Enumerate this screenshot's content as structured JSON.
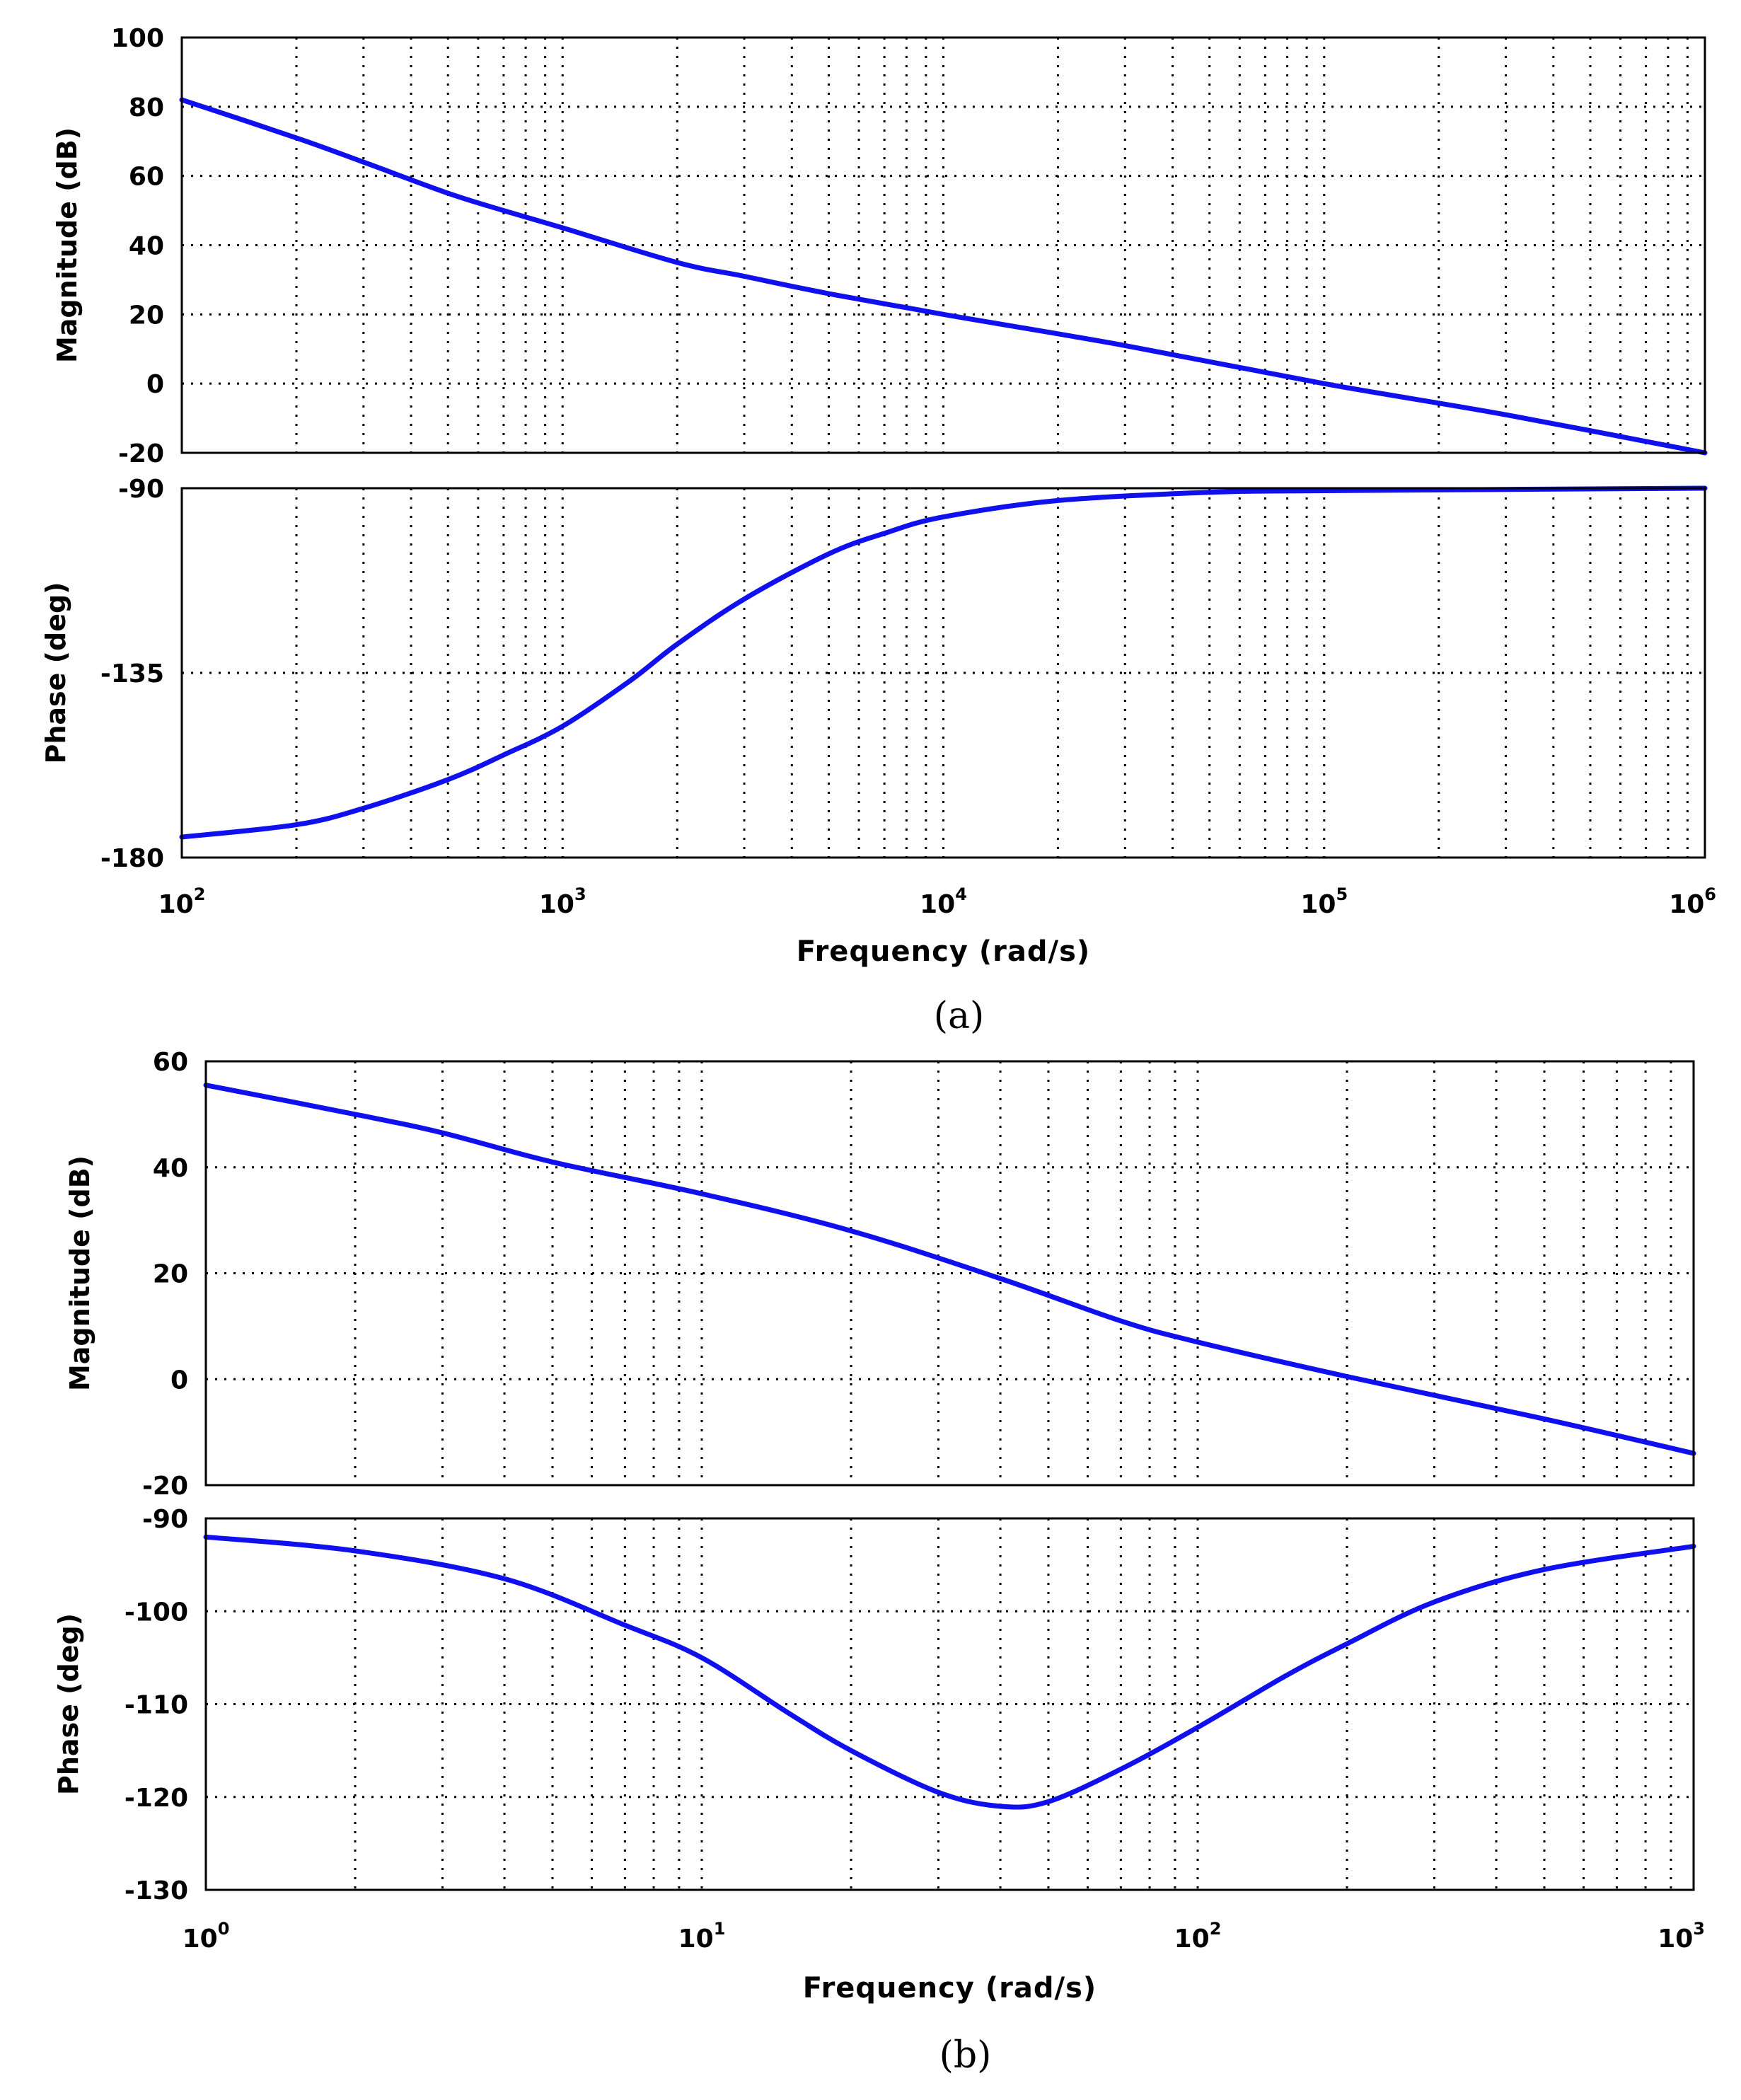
{
  "chart_data": [
    {
      "id": "a",
      "type": "line",
      "caption": "(a)",
      "xlabel": "Frequency  (rad/s)",
      "xscale": "log",
      "xlim": [
        100,
        1000000
      ],
      "xticks": [
        {
          "base": "10",
          "exp": "2"
        },
        {
          "base": "10",
          "exp": "3"
        },
        {
          "base": "10",
          "exp": "4"
        },
        {
          "base": "10",
          "exp": "5"
        },
        {
          "base": "10",
          "exp": "6"
        }
      ],
      "grid": true,
      "panels": [
        {
          "name": "magnitude",
          "ylabel": "Magnitude (dB)",
          "ylim": [
            -20,
            100
          ],
          "yticks": [
            100,
            80,
            60,
            40,
            20,
            0,
            -20
          ],
          "series": [
            {
              "name": "magnitude",
              "color": "#1010ee",
              "x": [
                100,
                200,
                300,
                500,
                700,
                1000,
                2000,
                3000,
                5000,
                10000,
                30000,
                100000,
                300000,
                1000000
              ],
              "y": [
                82,
                71,
                64,
                55,
                50,
                45,
                35,
                31,
                26,
                20,
                11,
                0,
                -9,
                -20
              ]
            }
          ]
        },
        {
          "name": "phase",
          "ylabel": "Phase (deg)",
          "ylim": [
            -180,
            -90
          ],
          "yticks": [
            -90,
            -135,
            -180
          ],
          "series": [
            {
              "name": "phase",
              "color": "#1010ee",
              "x": [
                100,
                200,
                300,
                500,
                700,
                1000,
                1500,
                2000,
                3000,
                5000,
                7000,
                10000,
                20000,
                50000,
                100000,
                1000000
              ],
              "y": [
                -175,
                -172,
                -168,
                -161,
                -155,
                -148,
                -137,
                -128,
                -117,
                -106,
                -101,
                -97,
                -93,
                -91,
                -90.6,
                -90
              ]
            }
          ]
        }
      ]
    },
    {
      "id": "b",
      "type": "line",
      "caption": "(b)",
      "xlabel": "Frequency  (rad/s)",
      "xscale": "log",
      "xlim": [
        1,
        1000
      ],
      "xticks": [
        {
          "base": "10",
          "exp": "0"
        },
        {
          "base": "10",
          "exp": "1"
        },
        {
          "base": "10",
          "exp": "2"
        },
        {
          "base": "10",
          "exp": "3"
        }
      ],
      "grid": true,
      "panels": [
        {
          "name": "magnitude",
          "ylabel": "Magnitude (dB)",
          "ylim": [
            -20,
            60
          ],
          "yticks": [
            60,
            40,
            20,
            0,
            -20
          ],
          "series": [
            {
              "name": "magnitude",
              "color": "#1010ee",
              "x": [
                1,
                2,
                3,
                5,
                10,
                20,
                40,
                70,
                100,
                200,
                500,
                1000
              ],
              "y": [
                55.5,
                50,
                46.5,
                41,
                35,
                28,
                19,
                11,
                7,
                0.5,
                -7.5,
                -14
              ]
            }
          ]
        },
        {
          "name": "phase",
          "ylabel": "Phase (deg)",
          "ylim": [
            -130,
            -90
          ],
          "yticks": [
            -90,
            -100,
            -110,
            -120,
            -130
          ],
          "series": [
            {
              "name": "phase",
              "color": "#1010ee",
              "x": [
                1,
                2,
                4,
                7,
                10,
                15,
                20,
                30,
                40,
                50,
                70,
                100,
                150,
                200,
                300,
                500,
                1000
              ],
              "y": [
                -92,
                -93.5,
                -96.5,
                -101.5,
                -105,
                -111,
                -115,
                -119.5,
                -121,
                -120.5,
                -117,
                -112.5,
                -107,
                -103.5,
                -99,
                -95.5,
                -93
              ]
            }
          ]
        }
      ]
    }
  ]
}
